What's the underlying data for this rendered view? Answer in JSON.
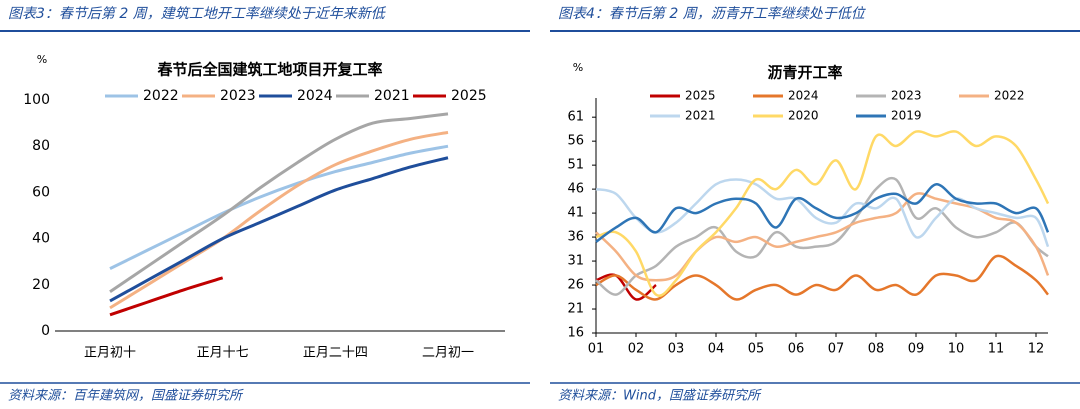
{
  "chart_data": [
    {
      "type": "line",
      "caption": "图表3：春节后第 2 周，建筑工地开工率继续处于近年来新低",
      "source": "资料来源：百年建筑网，国盛证券研究所",
      "title": "春节后全国建筑工地项目开复工率",
      "y_label": "%",
      "categories": [
        "正月初十",
        null,
        null,
        "正月十七",
        null,
        null,
        "正月二十四",
        null,
        null,
        "二月初一"
      ],
      "ylim": [
        0,
        100
      ],
      "yticks": [
        0,
        20,
        40,
        60,
        80,
        100
      ],
      "series": [
        {
          "name": "2022",
          "color": "#9dc3e6",
          "values": [
            27,
            35,
            43,
            51,
            58,
            64,
            69,
            73,
            77,
            80
          ]
        },
        {
          "name": "2023",
          "color": "#f4b183",
          "values": [
            10,
            20,
            30,
            40,
            52,
            63,
            72,
            78,
            83,
            86
          ]
        },
        {
          "name": "2024",
          "color": "#1f4e9b",
          "values": [
            13,
            22,
            31,
            40,
            47,
            54,
            61,
            66,
            71,
            75
          ]
        },
        {
          "name": "2021",
          "color": "#a6a6a6",
          "values": [
            17,
            28,
            39,
            50,
            62,
            73,
            83,
            90,
            92,
            94
          ]
        },
        {
          "name": "2025",
          "color": "#c00000",
          "values": [
            7,
            12.5,
            18,
            23,
            null,
            null,
            null,
            null,
            null,
            null
          ]
        }
      ]
    },
    {
      "type": "line",
      "caption": "图表4：春节后第 2 周，沥青开工率继续处于低位",
      "source": "资料来源：Wind，国盛证券研究所",
      "title": "沥青开工率",
      "y_label": "%",
      "x": [
        1,
        1.5,
        2,
        2.5,
        3,
        3.5,
        4,
        4.5,
        5,
        5.5,
        6,
        6.5,
        7,
        7.5,
        8,
        8.5,
        9,
        9.5,
        10,
        10.5,
        11,
        11.5,
        12,
        12.3
      ],
      "xlim": [
        1,
        12.3
      ],
      "xticks": [
        {
          "value": 1,
          "label": "01"
        },
        {
          "value": 2,
          "label": "02"
        },
        {
          "value": 3,
          "label": "03"
        },
        {
          "value": 4,
          "label": "04"
        },
        {
          "value": 5,
          "label": "05"
        },
        {
          "value": 6,
          "label": "06"
        },
        {
          "value": 7,
          "label": "07"
        },
        {
          "value": 8,
          "label": "08"
        },
        {
          "value": 9,
          "label": "09"
        },
        10,
        11,
        12
      ],
      "ylim": [
        16,
        65
      ],
      "yticks": [
        16,
        21,
        26,
        31,
        36,
        41,
        46,
        51,
        56,
        61
      ],
      "series": [
        {
          "name": "2025",
          "color": "#c00000",
          "values": [
            27,
            28,
            23,
            26,
            null,
            null,
            null,
            null,
            null,
            null,
            null,
            null,
            null,
            null,
            null,
            null,
            null,
            null,
            null,
            null,
            null,
            null,
            null,
            null
          ]
        },
        {
          "name": "2024",
          "color": "#e5772b",
          "values": [
            26,
            28,
            25,
            23,
            26,
            28,
            26,
            23,
            25,
            26,
            24,
            26,
            25,
            28,
            25,
            26,
            24,
            28,
            28,
            27,
            32,
            30,
            27,
            24
          ]
        },
        {
          "name": "2023",
          "color": "#b4b4b4",
          "values": [
            27,
            24,
            28,
            30,
            34,
            36,
            38,
            33,
            32,
            37,
            34,
            34,
            35,
            40,
            46,
            48,
            40,
            42,
            38,
            36,
            37,
            39,
            34,
            32
          ]
        },
        {
          "name": "2022",
          "color": "#f4b183",
          "values": [
            37,
            33,
            28,
            27,
            28,
            33,
            36,
            35,
            36,
            34,
            35,
            36,
            37,
            39,
            40,
            41,
            45,
            44,
            43,
            42,
            40,
            39,
            34,
            28
          ]
        },
        {
          "name": "2021",
          "color": "#bdd7ee",
          "values": [
            46,
            45,
            40,
            37,
            39,
            43,
            47,
            48,
            47,
            44,
            44,
            40,
            39,
            43,
            42,
            44,
            36,
            40,
            44,
            42,
            41,
            40,
            40,
            34
          ]
        },
        {
          "name": "2020",
          "color": "#ffd966",
          "values": [
            36,
            37,
            33,
            24,
            27,
            33,
            37,
            42,
            48,
            46,
            50,
            47,
            52,
            46,
            57,
            55,
            58,
            57,
            58,
            55,
            57,
            55,
            48,
            43
          ]
        },
        {
          "name": "2019",
          "color": "#2e75b6",
          "values": [
            35,
            38,
            40,
            37,
            42,
            41,
            43,
            44,
            43,
            38,
            44,
            42,
            40,
            41,
            44,
            45,
            43,
            47,
            44,
            43,
            43,
            41,
            42,
            37
          ]
        }
      ]
    }
  ]
}
